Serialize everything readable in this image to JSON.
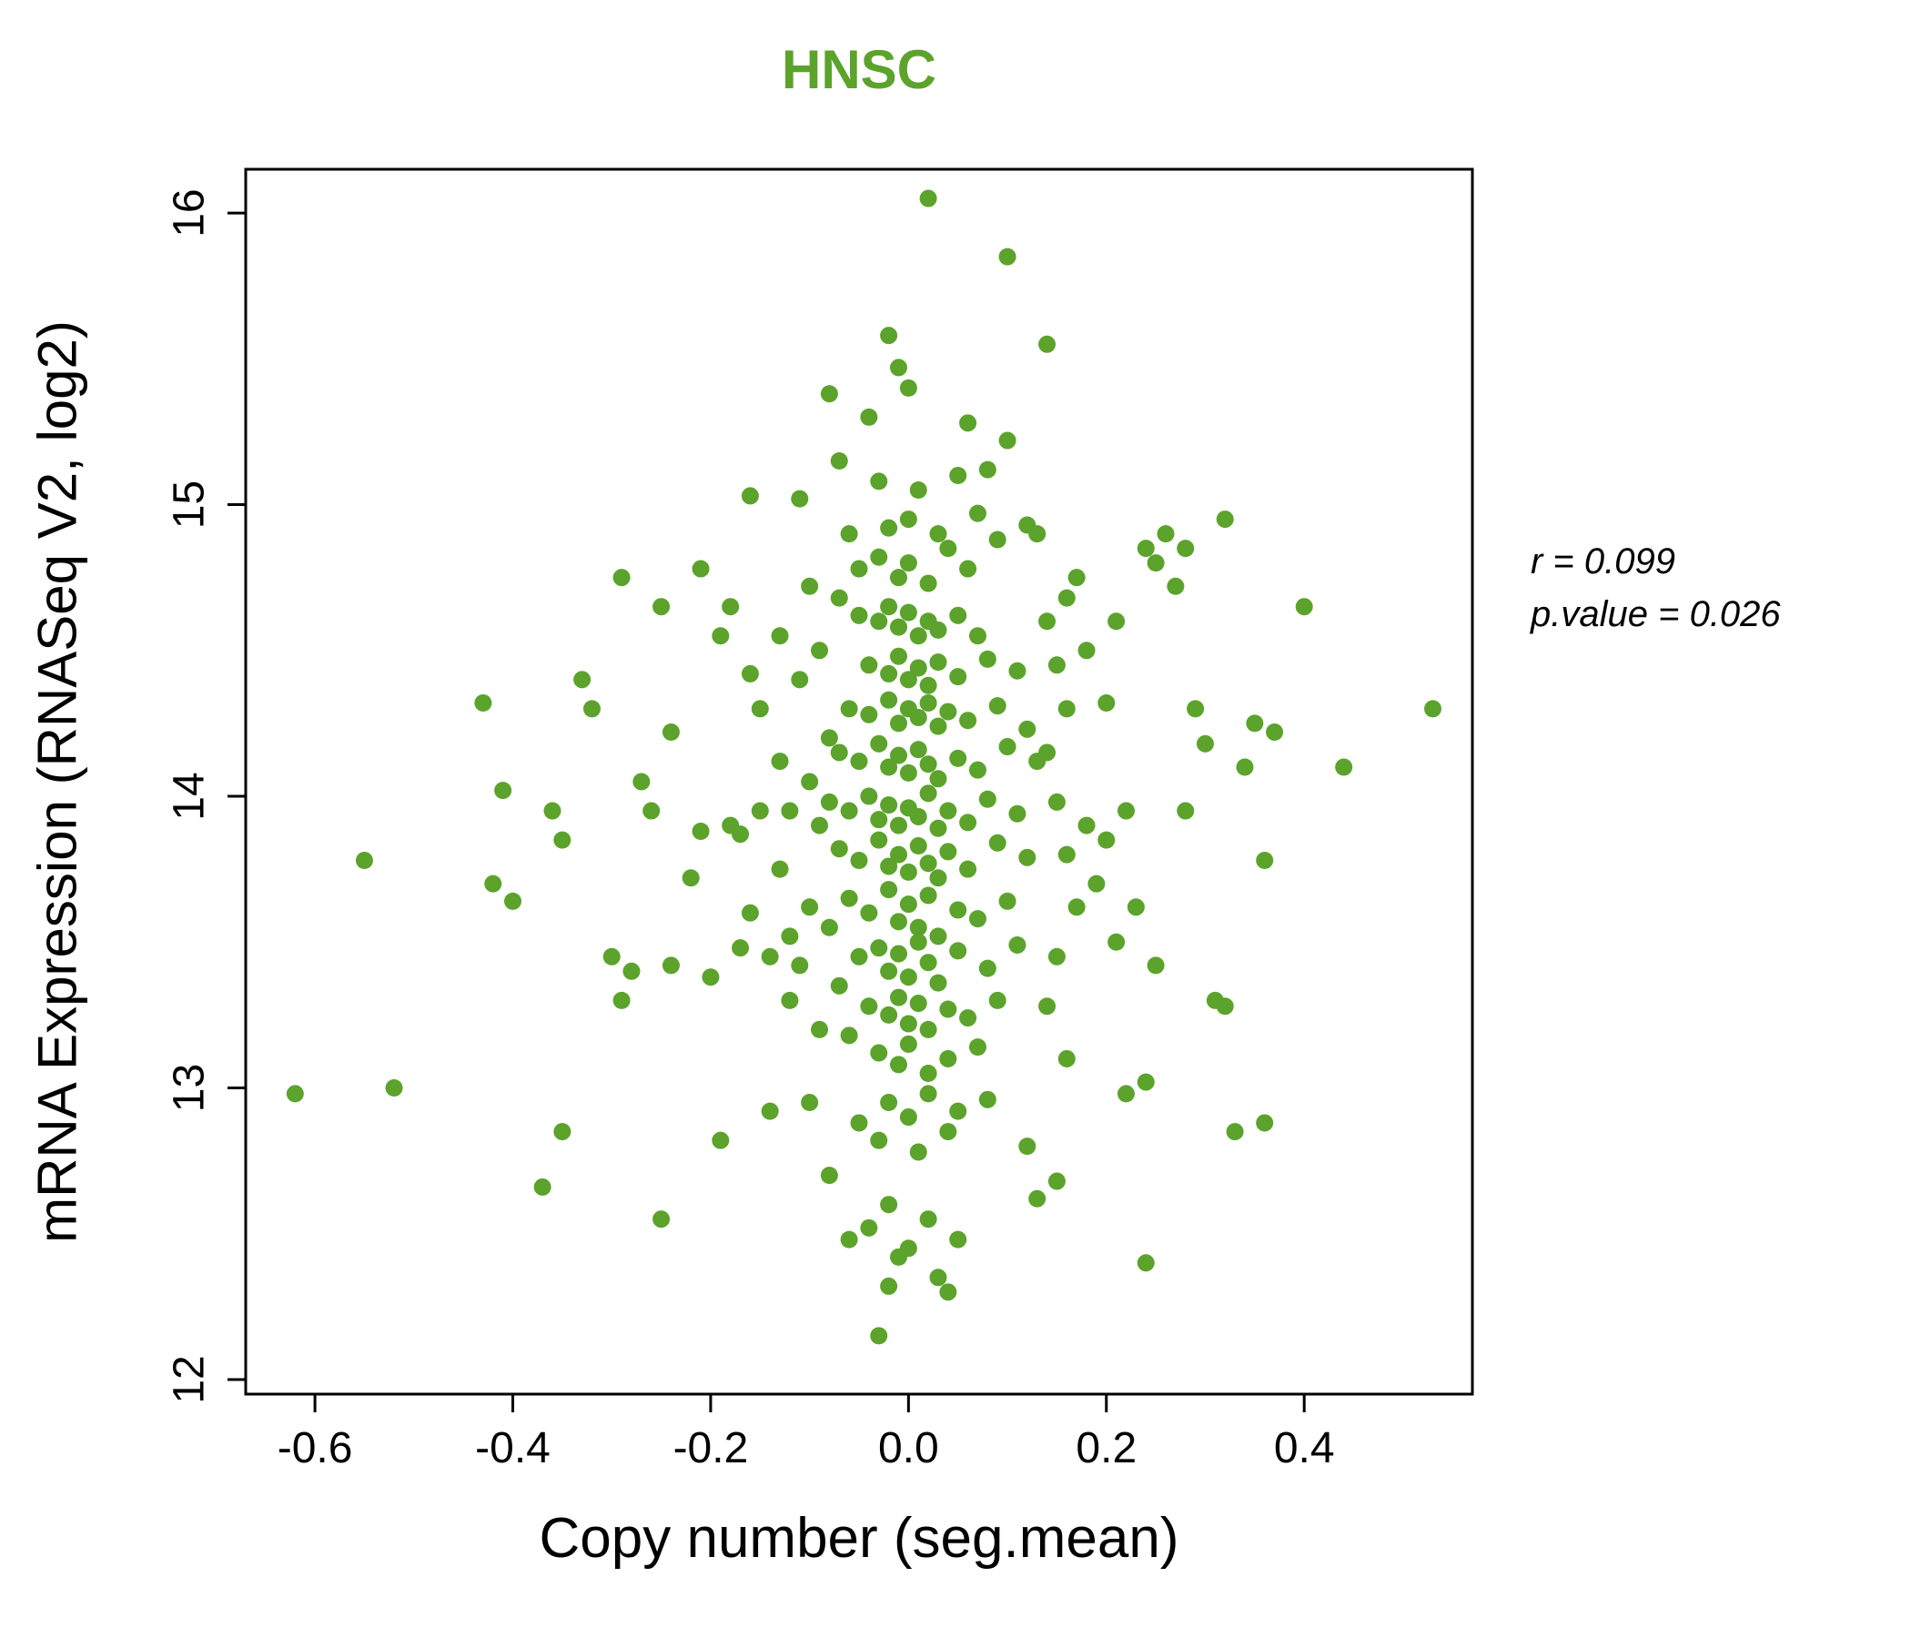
{
  "annotation": {
    "r_label": "r = 0.099",
    "p_label": "p.value = 0.026"
  },
  "chart_data": {
    "type": "scatter",
    "title": "HNSC",
    "xlabel": "Copy number (seg.mean)",
    "ylabel": "mRNA Expression (RNASeq V2, log2)",
    "xlim": [
      -0.67,
      0.57
    ],
    "ylim": [
      11.95,
      16.15
    ],
    "xticks": [
      -0.6,
      -0.4,
      -0.2,
      0.0,
      0.2,
      0.4
    ],
    "xtick_labels": [
      "-0.6",
      "-0.4",
      "-0.2",
      "0.0",
      "0.2",
      "0.4"
    ],
    "yticks": [
      12,
      13,
      14,
      15,
      16
    ],
    "ytick_labels": [
      "12",
      "13",
      "14",
      "15",
      "16"
    ],
    "grid": false,
    "point_color": "#5BA32B",
    "title_color": "#5BA32B",
    "stats": {
      "r": 0.099,
      "p_value": 0.026
    },
    "points": [
      [
        -0.62,
        12.98
      ],
      [
        -0.52,
        13.0
      ],
      [
        -0.55,
        13.78
      ],
      [
        -0.43,
        14.32
      ],
      [
        -0.42,
        13.7
      ],
      [
        -0.41,
        14.02
      ],
      [
        -0.4,
        13.64
      ],
      [
        -0.37,
        12.66
      ],
      [
        -0.36,
        13.95
      ],
      [
        -0.35,
        12.85
      ],
      [
        -0.35,
        13.85
      ],
      [
        -0.33,
        14.4
      ],
      [
        -0.32,
        14.3
      ],
      [
        -0.3,
        13.45
      ],
      [
        -0.29,
        14.75
      ],
      [
        -0.29,
        13.3
      ],
      [
        -0.28,
        13.4
      ],
      [
        -0.27,
        14.05
      ],
      [
        -0.26,
        13.95
      ],
      [
        -0.25,
        14.65
      ],
      [
        -0.25,
        12.55
      ],
      [
        -0.24,
        13.42
      ],
      [
        -0.24,
        14.22
      ],
      [
        -0.22,
        13.72
      ],
      [
        -0.21,
        14.78
      ],
      [
        -0.21,
        13.88
      ],
      [
        -0.2,
        13.38
      ],
      [
        -0.19,
        12.82
      ],
      [
        -0.19,
        14.55
      ],
      [
        -0.18,
        13.9
      ],
      [
        -0.17,
        13.87
      ],
      [
        -0.16,
        15.03
      ],
      [
        -0.16,
        13.6
      ],
      [
        -0.15,
        14.3
      ],
      [
        -0.14,
        12.92
      ],
      [
        -0.13,
        13.75
      ],
      [
        -0.13,
        14.12
      ],
      [
        -0.12,
        13.95
      ],
      [
        -0.12,
        13.52
      ],
      [
        -0.11,
        14.4
      ],
      [
        -0.11,
        13.42
      ],
      [
        -0.1,
        14.05
      ],
      [
        -0.1,
        13.62
      ],
      [
        -0.09,
        14.5
      ],
      [
        -0.09,
        13.9
      ],
      [
        -0.08,
        14.2
      ],
      [
        -0.08,
        13.55
      ],
      [
        -0.07,
        14.68
      ],
      [
        -0.07,
        13.35
      ],
      [
        -0.06,
        14.9
      ],
      [
        -0.06,
        13.18
      ],
      [
        -0.09,
        13.2
      ],
      [
        -0.1,
        12.95
      ],
      [
        -0.08,
        12.7
      ],
      [
        -0.06,
        12.48
      ],
      [
        -0.12,
        13.3
      ],
      [
        -0.14,
        13.45
      ],
      [
        -0.13,
        14.55
      ],
      [
        -0.15,
        13.95
      ],
      [
        -0.16,
        14.42
      ],
      [
        -0.17,
        13.48
      ],
      [
        -0.18,
        14.65
      ],
      [
        -0.1,
        14.72
      ],
      [
        -0.11,
        15.02
      ],
      [
        -0.07,
        15.15
      ],
      [
        -0.05,
        14.62
      ],
      [
        -0.03,
        14.6
      ],
      [
        -0.02,
        14.65
      ],
      [
        -0.01,
        14.58
      ],
      [
        0.0,
        14.63
      ],
      [
        0.01,
        14.55
      ],
      [
        0.02,
        14.6
      ],
      [
        0.03,
        14.57
      ],
      [
        0.05,
        14.62
      ],
      [
        0.07,
        14.55
      ],
      [
        -0.04,
        14.45
      ],
      [
        -0.02,
        14.42
      ],
      [
        -0.01,
        14.48
      ],
      [
        0.0,
        14.4
      ],
      [
        0.01,
        14.44
      ],
      [
        0.02,
        14.38
      ],
      [
        0.03,
        14.46
      ],
      [
        0.05,
        14.41
      ],
      [
        0.08,
        14.47
      ],
      [
        0.11,
        14.43
      ],
      [
        -0.06,
        14.3
      ],
      [
        -0.04,
        14.28
      ],
      [
        -0.02,
        14.33
      ],
      [
        -0.01,
        14.25
      ],
      [
        0.0,
        14.3
      ],
      [
        0.01,
        14.27
      ],
      [
        0.02,
        14.32
      ],
      [
        0.03,
        14.24
      ],
      [
        0.04,
        14.29
      ],
      [
        0.06,
        14.26
      ],
      [
        0.09,
        14.31
      ],
      [
        0.12,
        14.23
      ],
      [
        -0.07,
        14.15
      ],
      [
        -0.05,
        14.12
      ],
      [
        -0.03,
        14.18
      ],
      [
        -0.02,
        14.1
      ],
      [
        -0.01,
        14.14
      ],
      [
        0.0,
        14.08
      ],
      [
        0.01,
        14.16
      ],
      [
        0.02,
        14.11
      ],
      [
        0.03,
        14.06
      ],
      [
        0.05,
        14.13
      ],
      [
        0.07,
        14.09
      ],
      [
        0.1,
        14.17
      ],
      [
        0.13,
        14.12
      ],
      [
        -0.08,
        13.98
      ],
      [
        -0.06,
        13.95
      ],
      [
        -0.04,
        14.0
      ],
      [
        -0.03,
        13.92
      ],
      [
        -0.02,
        13.97
      ],
      [
        -0.01,
        13.9
      ],
      [
        0.0,
        13.96
      ],
      [
        0.01,
        13.93
      ],
      [
        0.02,
        14.01
      ],
      [
        0.03,
        13.89
      ],
      [
        0.04,
        13.95
      ],
      [
        0.06,
        13.91
      ],
      [
        0.08,
        13.99
      ],
      [
        0.11,
        13.94
      ],
      [
        -0.07,
        13.82
      ],
      [
        -0.05,
        13.78
      ],
      [
        -0.03,
        13.85
      ],
      [
        -0.02,
        13.76
      ],
      [
        -0.01,
        13.8
      ],
      [
        0.0,
        13.74
      ],
      [
        0.01,
        13.83
      ],
      [
        0.02,
        13.77
      ],
      [
        0.03,
        13.72
      ],
      [
        0.04,
        13.81
      ],
      [
        0.06,
        13.75
      ],
      [
        0.09,
        13.84
      ],
      [
        0.12,
        13.79
      ],
      [
        -0.06,
        13.65
      ],
      [
        -0.04,
        13.6
      ],
      [
        -0.02,
        13.68
      ],
      [
        -0.01,
        13.57
      ],
      [
        0.0,
        13.63
      ],
      [
        0.01,
        13.55
      ],
      [
        0.02,
        13.66
      ],
      [
        0.03,
        13.52
      ],
      [
        0.05,
        13.61
      ],
      [
        0.07,
        13.58
      ],
      [
        0.1,
        13.64
      ],
      [
        -0.05,
        13.45
      ],
      [
        -0.03,
        13.48
      ],
      [
        -0.02,
        13.4
      ],
      [
        -0.01,
        13.46
      ],
      [
        0.0,
        13.38
      ],
      [
        0.01,
        13.5
      ],
      [
        0.02,
        13.43
      ],
      [
        0.03,
        13.36
      ],
      [
        0.05,
        13.47
      ],
      [
        0.08,
        13.41
      ],
      [
        0.11,
        13.49
      ],
      [
        -0.04,
        13.28
      ],
      [
        -0.02,
        13.25
      ],
      [
        -0.01,
        13.31
      ],
      [
        0.0,
        13.22
      ],
      [
        0.01,
        13.29
      ],
      [
        0.02,
        13.2
      ],
      [
        0.04,
        13.27
      ],
      [
        0.06,
        13.24
      ],
      [
        0.09,
        13.3
      ],
      [
        -0.03,
        13.12
      ],
      [
        -0.01,
        13.08
      ],
      [
        0.0,
        13.15
      ],
      [
        0.02,
        13.05
      ],
      [
        0.04,
        13.1
      ],
      [
        0.07,
        13.14
      ],
      [
        -0.05,
        14.78
      ],
      [
        -0.03,
        14.82
      ],
      [
        -0.01,
        14.75
      ],
      [
        0.0,
        14.8
      ],
      [
        0.02,
        14.73
      ],
      [
        0.04,
        14.85
      ],
      [
        0.06,
        14.78
      ],
      [
        0.09,
        14.88
      ],
      [
        -0.02,
        14.92
      ],
      [
        0.0,
        14.95
      ],
      [
        0.03,
        14.9
      ],
      [
        0.07,
        14.97
      ],
      [
        0.12,
        14.93
      ],
      [
        0.01,
        15.05
      ],
      [
        0.05,
        15.1
      ],
      [
        0.08,
        15.12
      ],
      [
        -0.03,
        15.08
      ],
      [
        0.1,
        15.22
      ],
      [
        0.06,
        15.28
      ],
      [
        -0.04,
        15.3
      ],
      [
        0.0,
        15.4
      ],
      [
        -0.01,
        15.47
      ],
      [
        -0.08,
        15.38
      ],
      [
        -0.02,
        15.58
      ],
      [
        0.14,
        15.55
      ],
      [
        0.1,
        15.85
      ],
      [
        0.02,
        16.05
      ],
      [
        -0.02,
        12.95
      ],
      [
        0.0,
        12.9
      ],
      [
        0.02,
        12.98
      ],
      [
        0.05,
        12.92
      ],
      [
        -0.05,
        12.88
      ],
      [
        0.08,
        12.96
      ],
      [
        -0.03,
        12.82
      ],
      [
        0.01,
        12.78
      ],
      [
        0.04,
        12.85
      ],
      [
        0.12,
        12.8
      ],
      [
        -0.02,
        12.6
      ],
      [
        0.02,
        12.55
      ],
      [
        -0.04,
        12.52
      ],
      [
        0.05,
        12.48
      ],
      [
        0.0,
        12.45
      ],
      [
        -0.01,
        12.42
      ],
      [
        0.03,
        12.35
      ],
      [
        -0.02,
        12.32
      ],
      [
        0.04,
        12.3
      ],
      [
        -0.03,
        12.15
      ],
      [
        0.14,
        14.6
      ],
      [
        0.15,
        14.45
      ],
      [
        0.16,
        14.3
      ],
      [
        0.14,
        14.15
      ],
      [
        0.15,
        13.98
      ],
      [
        0.16,
        13.8
      ],
      [
        0.17,
        13.62
      ],
      [
        0.15,
        13.45
      ],
      [
        0.14,
        13.28
      ],
      [
        0.16,
        13.1
      ],
      [
        0.18,
        14.5
      ],
      [
        0.18,
        13.9
      ],
      [
        0.19,
        13.7
      ],
      [
        0.13,
        12.62
      ],
      [
        0.15,
        12.68
      ],
      [
        0.17,
        14.75
      ],
      [
        0.13,
        14.9
      ],
      [
        0.16,
        14.68
      ],
      [
        0.2,
        14.32
      ],
      [
        0.2,
        13.85
      ],
      [
        0.21,
        14.6
      ],
      [
        0.21,
        13.5
      ],
      [
        0.22,
        13.95
      ],
      [
        0.22,
        12.98
      ],
      [
        0.23,
        13.62
      ],
      [
        0.24,
        14.85
      ],
      [
        0.24,
        13.02
      ],
      [
        0.24,
        12.4
      ],
      [
        0.25,
        14.8
      ],
      [
        0.25,
        13.42
      ],
      [
        0.26,
        14.9
      ],
      [
        0.27,
        14.72
      ],
      [
        0.28,
        14.85
      ],
      [
        0.28,
        13.95
      ],
      [
        0.29,
        14.3
      ],
      [
        0.3,
        14.18
      ],
      [
        0.31,
        13.3
      ],
      [
        0.32,
        13.28
      ],
      [
        0.32,
        14.95
      ],
      [
        0.33,
        12.85
      ],
      [
        0.34,
        14.1
      ],
      [
        0.35,
        14.25
      ],
      [
        0.36,
        12.88
      ],
      [
        0.36,
        13.78
      ],
      [
        0.37,
        14.22
      ],
      [
        0.4,
        14.65
      ],
      [
        0.44,
        14.1
      ],
      [
        0.53,
        14.3
      ]
    ]
  }
}
